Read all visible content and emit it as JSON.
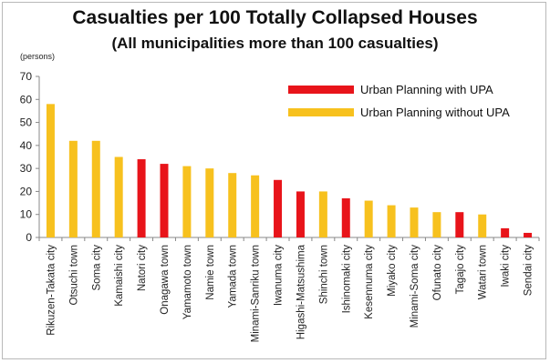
{
  "chart_data": {
    "type": "bar",
    "title": "Casualties per 100 Totally Collapsed Houses",
    "subtitle": "(All municipalities more than 100 casualties)",
    "ylabel": "(persons)",
    "ylim": [
      0,
      70
    ],
    "yticks": [
      0,
      10,
      20,
      30,
      40,
      50,
      60,
      70
    ],
    "grid": false,
    "legend_position": "top-right",
    "colors": {
      "Urban Planning with UPA": "#e8141a",
      "Urban Planning without UPA": "#f7c11e"
    },
    "categories": [
      "Rikuzen-Takata city",
      "Otsuchi town",
      "Soma city",
      "Kamaishi city",
      "Natori city",
      "Onagawa town",
      "Yamamoto town",
      "Namie town",
      "Yamada town",
      "Minami-Sanriku town",
      "Iwanuma city",
      "Higashi-Matsushima",
      "Shinchi town",
      "Ishinomaki city",
      "Kesennuma city",
      "Miyako city",
      "Minami-Soma city",
      "Ofunato city",
      "Tagajo city",
      "Watari town",
      "Iwaki city",
      "Sendai city"
    ],
    "values": [
      58,
      42,
      42,
      35,
      34,
      32,
      31,
      30,
      28,
      27,
      25,
      20,
      20,
      17,
      16,
      14,
      13,
      11,
      11,
      10,
      4,
      2
    ],
    "series_assignment": [
      "Urban Planning without UPA",
      "Urban Planning without UPA",
      "Urban Planning without UPA",
      "Urban Planning without UPA",
      "Urban Planning with UPA",
      "Urban Planning with UPA",
      "Urban Planning without UPA",
      "Urban Planning without UPA",
      "Urban Planning without UPA",
      "Urban Planning without UPA",
      "Urban Planning with UPA",
      "Urban Planning with UPA",
      "Urban Planning without UPA",
      "Urban Planning with UPA",
      "Urban Planning without UPA",
      "Urban Planning without UPA",
      "Urban Planning without UPA",
      "Urban Planning without UPA",
      "Urban Planning with UPA",
      "Urban Planning without UPA",
      "Urban Planning with UPA",
      "Urban Planning with UPA"
    ],
    "legend": [
      "Urban Planning with UPA",
      "Urban Planning without UPA"
    ]
  }
}
